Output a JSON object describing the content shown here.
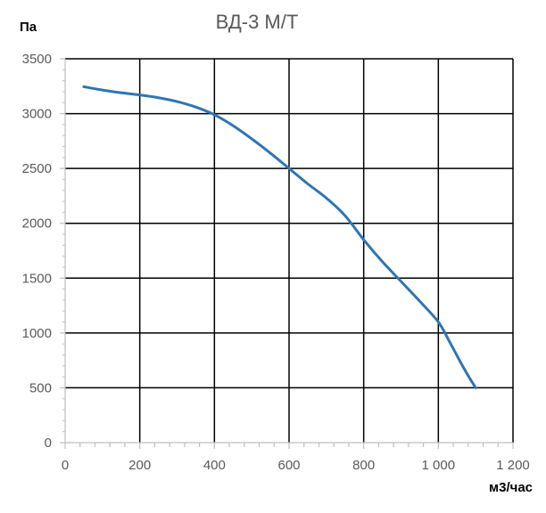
{
  "chart_data": {
    "type": "line",
    "title": "ВД-3 М/Т",
    "xlabel": "м3/час",
    "ylabel": "Па",
    "xlim": [
      0,
      1200
    ],
    "ylim": [
      0,
      3500
    ],
    "x_ticks": [
      0,
      200,
      400,
      600,
      800,
      1000,
      1200
    ],
    "x_tick_labels": [
      "0",
      "200",
      "400",
      "600",
      "800",
      "1 000",
      "1 200"
    ],
    "y_ticks": [
      0,
      500,
      1000,
      1500,
      2000,
      2500,
      3000,
      3500
    ],
    "y_tick_labels": [
      "0",
      "500",
      "1000",
      "1500",
      "2000",
      "2500",
      "3000",
      "3500"
    ],
    "x_minor_step": 40,
    "grid": true,
    "legend": false,
    "series": [
      {
        "color": "#2e75b6",
        "x": [
          50,
          100,
          150,
          200,
          250,
          300,
          350,
          400,
          450,
          500,
          550,
          600,
          650,
          700,
          750,
          800,
          850,
          900,
          950,
          1000,
          1030,
          1060,
          1080,
          1100
        ],
        "y": [
          3245,
          3215,
          3190,
          3170,
          3145,
          3110,
          3060,
          2990,
          2890,
          2770,
          2640,
          2500,
          2360,
          2230,
          2070,
          1850,
          1650,
          1470,
          1290,
          1100,
          920,
          730,
          610,
          500
        ]
      }
    ]
  }
}
